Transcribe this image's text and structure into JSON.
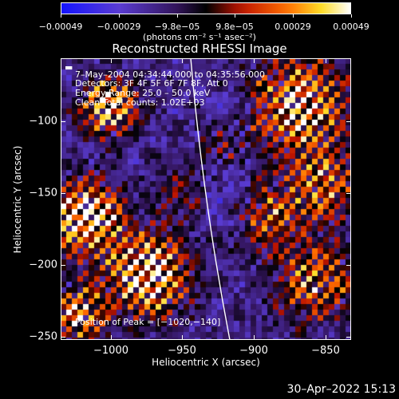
{
  "colorbar": {
    "tick_labels": [
      "−0.00049",
      "−0.00029",
      "−9.8e−05",
      "9.8e−05",
      "0.00029",
      "0.00049"
    ],
    "units_text": "(photons cm⁻² s⁻¹ asec⁻²)",
    "range": [
      -0.00049,
      0.00049
    ]
  },
  "plot": {
    "title": "Reconstructed RHESSI Image",
    "annotations": {
      "time_range": "7–May–2004 04:34:44.000 to 04:35:56.000",
      "detectors": "Detectors: 3F 4F 5F 6F 7F 8F, Att 0",
      "energy_range": "Energy Range: 25.0 – 50.0 keV",
      "clean_counts": "Clean      Total counts: 1.02E+03",
      "peak_position": "Position of Peak = [−1020,−140]"
    },
    "xlabel": "Heliocentric X (arcsec)",
    "ylabel": "Heliocentric Y (arcsec)",
    "x_ticks": [
      "−1000",
      "−950",
      "−900",
      "−850"
    ],
    "y_ticks": [
      "−100",
      "−150",
      "−200",
      "−250"
    ],
    "xlim": [
      -1035,
      -832
    ],
    "ylim": [
      -252,
      -56
    ]
  },
  "footer": {
    "timestamp": "30–Apr–2022 15:13"
  },
  "colors": {
    "limb": "#ffffff",
    "background": "#000000"
  }
}
